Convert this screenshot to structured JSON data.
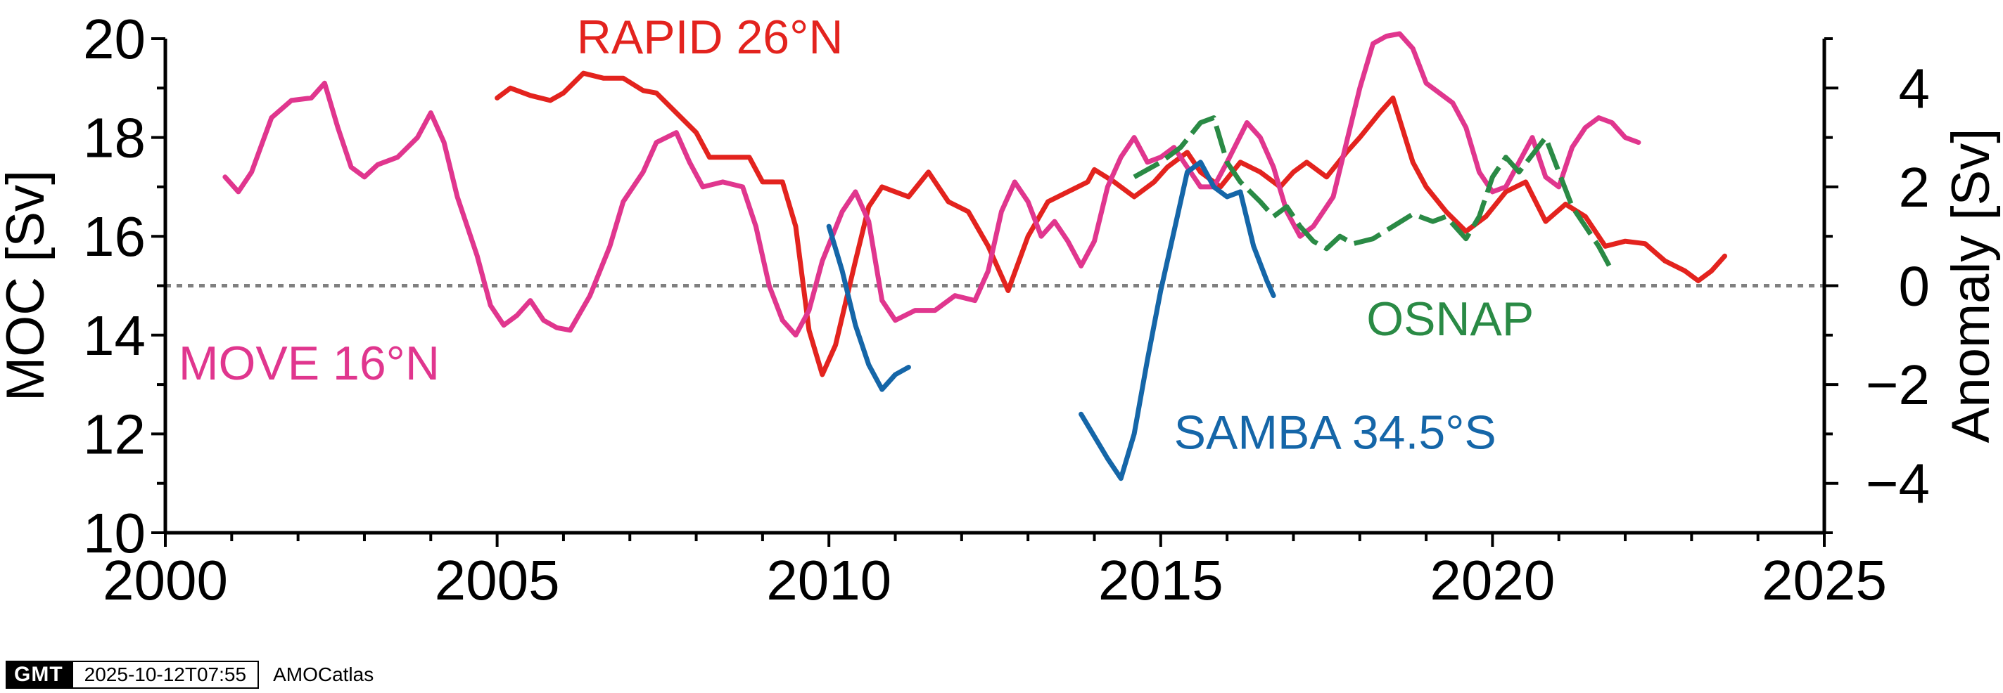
{
  "chart_data": {
    "type": "line",
    "xlabel": "",
    "ylabel": "MOC [Sv]",
    "y2label": "Anomaly [Sv]",
    "xlim": [
      2000,
      2025
    ],
    "ylim": [
      10,
      20
    ],
    "y2lim": [
      -5,
      5
    ],
    "reference_line": 15,
    "xticks": [
      2000,
      2005,
      2010,
      2015,
      2020,
      2025
    ],
    "yticks": [
      10,
      12,
      14,
      16,
      18,
      20
    ],
    "y2ticks": [
      {
        "value": -4,
        "label": "−4"
      },
      {
        "value": -2,
        "label": "−2"
      },
      {
        "value": 0,
        "label": "0"
      },
      {
        "value": 2,
        "label": "2"
      },
      {
        "value": 4,
        "label": "4"
      }
    ],
    "series": [
      {
        "name": "RAPID 26°N",
        "color": "#e3231e",
        "dash": "solid",
        "label_pos": [
          2006.2,
          19.7
        ],
        "points": [
          [
            2005.0,
            18.8
          ],
          [
            2005.2,
            19.0
          ],
          [
            2005.5,
            18.85
          ],
          [
            2005.8,
            18.75
          ],
          [
            2006.0,
            18.9
          ],
          [
            2006.3,
            19.3
          ],
          [
            2006.6,
            19.2
          ],
          [
            2006.9,
            19.2
          ],
          [
            2007.2,
            18.95
          ],
          [
            2007.4,
            18.9
          ],
          [
            2007.7,
            18.5
          ],
          [
            2008.0,
            18.1
          ],
          [
            2008.2,
            17.6
          ],
          [
            2008.5,
            17.6
          ],
          [
            2008.8,
            17.6
          ],
          [
            2009.0,
            17.1
          ],
          [
            2009.3,
            17.1
          ],
          [
            2009.5,
            16.2
          ],
          [
            2009.7,
            14.1
          ],
          [
            2009.9,
            13.2
          ],
          [
            2010.1,
            13.8
          ],
          [
            2010.4,
            15.5
          ],
          [
            2010.6,
            16.6
          ],
          [
            2010.8,
            17.0
          ],
          [
            2011.2,
            16.8
          ],
          [
            2011.5,
            17.3
          ],
          [
            2011.8,
            16.7
          ],
          [
            2012.1,
            16.5
          ],
          [
            2012.4,
            15.8
          ],
          [
            2012.7,
            14.9
          ],
          [
            2013.0,
            16.0
          ],
          [
            2013.3,
            16.7
          ],
          [
            2013.6,
            16.9
          ],
          [
            2013.9,
            17.1
          ],
          [
            2014.0,
            17.35
          ],
          [
            2014.3,
            17.1
          ],
          [
            2014.6,
            16.8
          ],
          [
            2014.9,
            17.1
          ],
          [
            2015.1,
            17.4
          ],
          [
            2015.4,
            17.7
          ],
          [
            2015.6,
            17.3
          ],
          [
            2015.9,
            17.0
          ],
          [
            2016.2,
            17.5
          ],
          [
            2016.5,
            17.3
          ],
          [
            2016.8,
            17.0
          ],
          [
            2017.0,
            17.3
          ],
          [
            2017.2,
            17.5
          ],
          [
            2017.5,
            17.2
          ],
          [
            2017.8,
            17.7
          ],
          [
            2018.0,
            18.0
          ],
          [
            2018.3,
            18.5
          ],
          [
            2018.5,
            18.8
          ],
          [
            2018.8,
            17.5
          ],
          [
            2019.0,
            17.0
          ],
          [
            2019.3,
            16.5
          ],
          [
            2019.6,
            16.1
          ],
          [
            2019.9,
            16.4
          ],
          [
            2020.2,
            16.9
          ],
          [
            2020.5,
            17.1
          ],
          [
            2020.8,
            16.3
          ],
          [
            2021.1,
            16.65
          ],
          [
            2021.4,
            16.4
          ],
          [
            2021.7,
            15.8
          ],
          [
            2022.0,
            15.9
          ],
          [
            2022.3,
            15.85
          ],
          [
            2022.6,
            15.5
          ],
          [
            2022.9,
            15.3
          ],
          [
            2023.1,
            15.1
          ],
          [
            2023.3,
            15.3
          ],
          [
            2023.5,
            15.6
          ]
        ]
      },
      {
        "name": "MOVE 16°N",
        "color": "#e0368e",
        "dash": "solid",
        "label_pos": [
          2000.2,
          13.1
        ],
        "points": [
          [
            2000.9,
            17.2
          ],
          [
            2001.1,
            16.9
          ],
          [
            2001.3,
            17.3
          ],
          [
            2001.6,
            18.4
          ],
          [
            2001.9,
            18.75
          ],
          [
            2002.2,
            18.8
          ],
          [
            2002.4,
            19.1
          ],
          [
            2002.6,
            18.2
          ],
          [
            2002.8,
            17.4
          ],
          [
            2003.0,
            17.2
          ],
          [
            2003.2,
            17.45
          ],
          [
            2003.5,
            17.6
          ],
          [
            2003.8,
            18.0
          ],
          [
            2004.0,
            18.5
          ],
          [
            2004.2,
            17.9
          ],
          [
            2004.4,
            16.8
          ],
          [
            2004.7,
            15.6
          ],
          [
            2004.9,
            14.6
          ],
          [
            2005.1,
            14.2
          ],
          [
            2005.3,
            14.4
          ],
          [
            2005.5,
            14.7
          ],
          [
            2005.7,
            14.3
          ],
          [
            2005.9,
            14.15
          ],
          [
            2006.1,
            14.1
          ],
          [
            2006.4,
            14.8
          ],
          [
            2006.7,
            15.8
          ],
          [
            2006.9,
            16.7
          ],
          [
            2007.2,
            17.3
          ],
          [
            2007.4,
            17.9
          ],
          [
            2007.7,
            18.1
          ],
          [
            2007.9,
            17.5
          ],
          [
            2008.1,
            17.0
          ],
          [
            2008.4,
            17.1
          ],
          [
            2008.7,
            17.0
          ],
          [
            2008.9,
            16.2
          ],
          [
            2009.1,
            15.0
          ],
          [
            2009.3,
            14.3
          ],
          [
            2009.5,
            14.0
          ],
          [
            2009.7,
            14.5
          ],
          [
            2009.9,
            15.5
          ],
          [
            2010.2,
            16.5
          ],
          [
            2010.4,
            16.9
          ],
          [
            2010.6,
            16.3
          ],
          [
            2010.8,
            14.7
          ],
          [
            2011.0,
            14.3
          ],
          [
            2011.3,
            14.5
          ],
          [
            2011.6,
            14.5
          ],
          [
            2011.9,
            14.8
          ],
          [
            2012.2,
            14.7
          ],
          [
            2012.4,
            15.3
          ],
          [
            2012.6,
            16.5
          ],
          [
            2012.8,
            17.1
          ],
          [
            2013.0,
            16.7
          ],
          [
            2013.2,
            16.0
          ],
          [
            2013.4,
            16.3
          ],
          [
            2013.6,
            15.9
          ],
          [
            2013.8,
            15.4
          ],
          [
            2014.0,
            15.9
          ],
          [
            2014.2,
            17.0
          ],
          [
            2014.4,
            17.6
          ],
          [
            2014.6,
            18.0
          ],
          [
            2014.8,
            17.5
          ],
          [
            2015.0,
            17.6
          ],
          [
            2015.2,
            17.8
          ],
          [
            2015.4,
            17.4
          ],
          [
            2015.6,
            17.0
          ],
          [
            2015.8,
            17.0
          ],
          [
            2016.0,
            17.5
          ],
          [
            2016.3,
            18.3
          ],
          [
            2016.5,
            18.0
          ],
          [
            2016.7,
            17.4
          ],
          [
            2016.9,
            16.5
          ],
          [
            2017.1,
            16.0
          ],
          [
            2017.3,
            16.2
          ],
          [
            2017.6,
            16.8
          ],
          [
            2017.8,
            17.9
          ],
          [
            2018.0,
            19.0
          ],
          [
            2018.2,
            19.9
          ],
          [
            2018.4,
            20.05
          ],
          [
            2018.6,
            20.1
          ],
          [
            2018.8,
            19.8
          ],
          [
            2019.0,
            19.1
          ],
          [
            2019.2,
            18.9
          ],
          [
            2019.4,
            18.7
          ],
          [
            2019.6,
            18.2
          ],
          [
            2019.8,
            17.3
          ],
          [
            2020.0,
            16.9
          ],
          [
            2020.2,
            17.0
          ],
          [
            2020.4,
            17.5
          ],
          [
            2020.6,
            18.0
          ],
          [
            2020.8,
            17.2
          ],
          [
            2021.0,
            17.0
          ],
          [
            2021.2,
            17.8
          ],
          [
            2021.4,
            18.2
          ],
          [
            2021.6,
            18.4
          ],
          [
            2021.8,
            18.3
          ],
          [
            2022.0,
            18.0
          ],
          [
            2022.2,
            17.9
          ]
        ]
      },
      {
        "name": "OSNAP",
        "color": "#2a8a45",
        "dash": "dashed",
        "label_pos": [
          2018.1,
          14.0
        ],
        "points": [
          [
            2014.6,
            17.2
          ],
          [
            2015.0,
            17.5
          ],
          [
            2015.3,
            17.8
          ],
          [
            2015.6,
            18.3
          ],
          [
            2015.8,
            18.4
          ],
          [
            2016.0,
            17.5
          ],
          [
            2016.2,
            17.1
          ],
          [
            2016.5,
            16.7
          ],
          [
            2016.7,
            16.4
          ],
          [
            2016.9,
            16.6
          ],
          [
            2017.1,
            16.2
          ],
          [
            2017.3,
            15.9
          ],
          [
            2017.5,
            15.75
          ],
          [
            2017.7,
            16.0
          ],
          [
            2017.9,
            15.85
          ],
          [
            2018.2,
            15.95
          ],
          [
            2018.5,
            16.2
          ],
          [
            2018.8,
            16.45
          ],
          [
            2019.1,
            16.3
          ],
          [
            2019.3,
            16.4
          ],
          [
            2019.6,
            15.95
          ],
          [
            2019.8,
            16.4
          ],
          [
            2020.0,
            17.2
          ],
          [
            2020.2,
            17.6
          ],
          [
            2020.4,
            17.3
          ],
          [
            2020.6,
            17.65
          ],
          [
            2020.8,
            18.0
          ],
          [
            2021.0,
            17.3
          ],
          [
            2021.2,
            16.6
          ],
          [
            2021.4,
            16.2
          ],
          [
            2021.6,
            15.8
          ],
          [
            2021.8,
            15.3
          ]
        ]
      },
      {
        "name": "SAMBA 34.5°S",
        "color": "#1566a8",
        "dash": "solid",
        "label_pos": [
          2015.2,
          11.7
        ],
        "points": [
          [
            2010.0,
            16.2
          ],
          [
            2010.2,
            15.3
          ],
          [
            2010.4,
            14.2
          ],
          [
            2010.6,
            13.4
          ],
          [
            2010.8,
            12.9
          ],
          [
            2011.0,
            13.2
          ],
          [
            2011.2,
            13.35
          ],
          [
            2013.8,
            12.4
          ],
          [
            2014.0,
            11.95
          ],
          [
            2014.2,
            11.5
          ],
          [
            2014.4,
            11.1
          ],
          [
            2014.6,
            12.0
          ],
          [
            2014.8,
            13.5
          ],
          [
            2015.0,
            14.9
          ],
          [
            2015.2,
            16.1
          ],
          [
            2015.4,
            17.3
          ],
          [
            2015.6,
            17.5
          ],
          [
            2015.8,
            17.0
          ],
          [
            2016.0,
            16.8
          ],
          [
            2016.2,
            16.9
          ],
          [
            2016.4,
            15.8
          ],
          [
            2016.6,
            15.1
          ],
          [
            2016.7,
            14.8
          ]
        ]
      }
    ]
  },
  "footer": {
    "logo_text": "GMT",
    "timestamp": "2025-10-12T07:55",
    "credit": "AMOCatlas"
  }
}
